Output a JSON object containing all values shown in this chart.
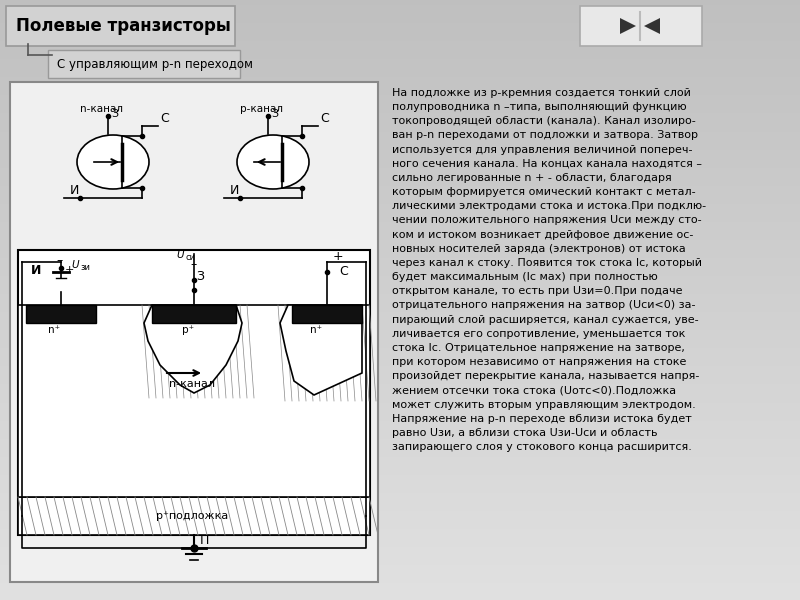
{
  "title": "Полевые транзисторы",
  "subtitle": "С управляющим p-n переходом",
  "bg_color": "#d0d0d0",
  "panel_color": "#c8c8c8",
  "text_color": "#000000",
  "main_text": "На подложке из p-кремния создается тонкий слой\nполупроводника n –типа, выполняющий функцию\nтокопроводящей области (канала). Канал изолиро-\nван p-n переходами от подложки и затвора. Затвор\nиспользуется для управления величиной попереч-\nного сечения канала. На концах канала находятся –\nсильно легированные n + - области, благодаря\nкоторым формируется омический контакт с метал-\nлическими электродами стока и истока.При подклю-\nчении положительного напряжения Uси между сто-\nком и истоком возникает дрейфовое движение ос-\nновных носителей заряда (электронов) от истока\nчерез канал к стоку. Появится ток стока Ic, который\nбудет максимальным (Ic мах) при полностью\nоткрытом канале, то есть при Uзи=0.При подаче\nотрицательного напряжения на затвор (Uси<0) за-\nпирающий слой расширяется, канал сужается, уве-\nличивается его сопротивление, уменьшается ток\nстока Ic. Отрицательное напряжение на затворе,\nпри котором независимо от напряжения на стоке\nпроизойдет перекрытие канала, называется напря-\nжением отсечки тока стока (Uотс<0).Подложка\nможет служить вторым управляющим электродом.\nНапряжение на p-n переходе вблизи истока будет\nравно Uзи, а вблизи стока Uзи-Uси и область\nзапирающего слоя у стокового конца расширится.",
  "nav_button_color": "#e8e8e8"
}
